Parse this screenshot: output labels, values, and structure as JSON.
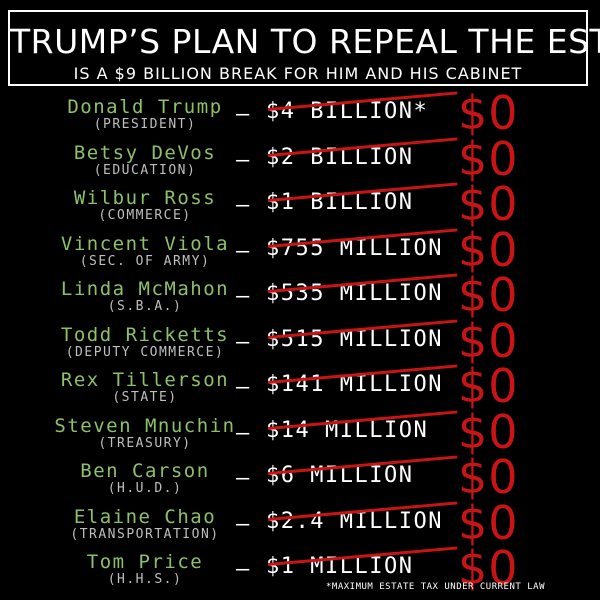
{
  "header": {
    "title": "TRUMP’S PLAN TO REPEAL THE ESTATE TAX",
    "subtitle": "IS A $9 BILLION BREAK FOR HIM AND HIS CABINET"
  },
  "separator": "—",
  "new_amount": "$0",
  "colors": {
    "background": "#000000",
    "name": "#8dc06a",
    "role": "#bfbfbf",
    "strike_and_zero": "#c91416",
    "text": "#ffffff"
  },
  "rows": [
    {
      "name": "Donald Trump",
      "role": "(PRESIDENT)",
      "amount": "$4 BILLION*"
    },
    {
      "name": "Betsy DeVos",
      "role": "(EDUCATION)",
      "amount": "$2 BILLION"
    },
    {
      "name": "Wilbur Ross",
      "role": "(COMMERCE)",
      "amount": "$1 BILLION"
    },
    {
      "name": "Vincent Viola",
      "role": "(SEC. OF ARMY)",
      "amount": "$755 MILLION"
    },
    {
      "name": "Linda McMahon",
      "role": "(S.B.A.)",
      "amount": "$535 MILLION"
    },
    {
      "name": "Todd Ricketts",
      "role": "(DEPUTY COMMERCE)",
      "amount": "$515 MILLION"
    },
    {
      "name": "Rex Tillerson",
      "role": "(STATE)",
      "amount": "$141 MILLION"
    },
    {
      "name": "Steven Mnuchin",
      "role": "(TREASURY)",
      "amount": "$14 MILLION"
    },
    {
      "name": "Ben Carson",
      "role": "(H.U.D.)",
      "amount": "$6 MILLION"
    },
    {
      "name": "Elaine Chao",
      "role": "(TRANSPORTATION)",
      "amount": "$2.4 MILLION"
    },
    {
      "name": "Tom Price",
      "role": "(H.H.S.)",
      "amount": "$1 MILLION"
    }
  ],
  "footnote": "*MAXIMUM ESTATE TAX UNDER CURRENT LAW"
}
